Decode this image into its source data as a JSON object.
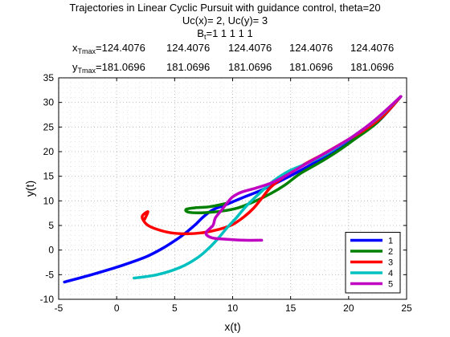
{
  "chart_data": {
    "type": "line",
    "title_lines": [
      "Trajectories in Linear Cyclic Pursuit with guidance control, theta=20",
      "Uc(x)= 2, Uc(y)= 3"
    ],
    "bt_label": "B",
    "bt_sub": "t",
    "bt_values": "=1  1  1  1  1",
    "xtmax_label": "x",
    "xtmax_sub": "Tmax",
    "xtmax_values": [
      "=124.4076",
      "124.4076",
      "124.4076",
      "124.4076",
      "124.4076"
    ],
    "ytmax_label": "y",
    "ytmax_sub": "Tmax",
    "ytmax_values": [
      "=181.0696",
      "181.0696",
      "181.0696",
      "181.0696",
      "181.0696"
    ],
    "xlabel": "x(t)",
    "ylabel": "y(t)",
    "xlim": [
      -5,
      25
    ],
    "ylim": [
      -10,
      35
    ],
    "xticks": [
      -5,
      0,
      5,
      10,
      15,
      20,
      25
    ],
    "yticks": [
      -10,
      -5,
      0,
      5,
      10,
      15,
      20,
      25,
      30,
      35
    ],
    "grid": true,
    "legend_position": "bottom-right",
    "series": [
      {
        "name": "1",
        "color": "#0000ff",
        "points": [
          [
            -4.5,
            -6.5
          ],
          [
            -2,
            -4.9
          ],
          [
            0.5,
            -3.1
          ],
          [
            2.5,
            -1.4
          ],
          [
            4,
            0.4
          ],
          [
            5.2,
            2.2
          ],
          [
            6,
            3.6
          ],
          [
            6.8,
            5.2
          ],
          [
            7.5,
            6.8
          ],
          [
            8.3,
            8.2
          ],
          [
            9.5,
            9.3
          ],
          [
            10.8,
            10.6
          ],
          [
            12.5,
            12.2
          ],
          [
            14.5,
            14.5
          ],
          [
            16.5,
            17
          ],
          [
            18.5,
            19.8
          ],
          [
            20.5,
            22.8
          ],
          [
            22.5,
            26
          ],
          [
            24.5,
            31.2
          ]
        ]
      },
      {
        "name": "2",
        "color": "#008000",
        "points": [
          [
            9.5,
            9.5
          ],
          [
            8,
            8.8
          ],
          [
            6.8,
            8.6
          ],
          [
            6,
            8.3
          ],
          [
            6.2,
            7.7
          ],
          [
            7.5,
            7.6
          ],
          [
            9,
            7.9
          ],
          [
            10.5,
            8.6
          ],
          [
            12,
            10
          ],
          [
            13.3,
            11.5
          ],
          [
            14.5,
            13.2
          ],
          [
            15.8,
            15.5
          ],
          [
            17.5,
            17.8
          ],
          [
            19,
            20
          ],
          [
            20.5,
            22.5
          ],
          [
            22.5,
            26
          ],
          [
            24.5,
            31.2
          ]
        ]
      },
      {
        "name": "3",
        "color": "#ff0000",
        "points": [
          [
            2.4,
            6.2
          ],
          [
            2.7,
            7.8
          ],
          [
            2.2,
            6.8
          ],
          [
            2.6,
            5.2
          ],
          [
            3.5,
            4.2
          ],
          [
            4.7,
            3.5
          ],
          [
            6,
            3.3
          ],
          [
            7.3,
            3.5
          ],
          [
            8.8,
            4.2
          ],
          [
            10,
            5.2
          ],
          [
            11,
            6.8
          ],
          [
            11.8,
            8.5
          ],
          [
            12.5,
            10.5
          ],
          [
            13.3,
            12.8
          ],
          [
            14.5,
            15
          ],
          [
            16,
            17.2
          ],
          [
            17.8,
            19.5
          ],
          [
            19.5,
            21.8
          ],
          [
            21.3,
            24.3
          ],
          [
            23,
            27.3
          ],
          [
            24.5,
            31.2
          ]
        ]
      },
      {
        "name": "4",
        "color": "#00c0c0",
        "points": [
          [
            1.5,
            -5.7
          ],
          [
            3.5,
            -5
          ],
          [
            5.5,
            -3.5
          ],
          [
            7,
            -1.5
          ],
          [
            8,
            0.5
          ],
          [
            8.8,
            2.5
          ],
          [
            9.5,
            4.5
          ],
          [
            10.3,
            6.5
          ],
          [
            11.2,
            9
          ],
          [
            12.3,
            11.5
          ],
          [
            13.5,
            14
          ],
          [
            14.8,
            16
          ],
          [
            16.3,
            17.5
          ],
          [
            17.8,
            19.2
          ],
          [
            19.2,
            21.2
          ],
          [
            20.8,
            23.8
          ],
          [
            22.5,
            26.8
          ],
          [
            24.5,
            31.2
          ]
        ]
      },
      {
        "name": "5",
        "color": "#c000c0",
        "points": [
          [
            12.5,
            2
          ],
          [
            11,
            2
          ],
          [
            9.5,
            2.2
          ],
          [
            8.2,
            2.5
          ],
          [
            7.7,
            3.5
          ],
          [
            8.3,
            5
          ],
          [
            8.5,
            6.5
          ],
          [
            9,
            8
          ],
          [
            9.5,
            9.5
          ],
          [
            10,
            10.8
          ],
          [
            10.8,
            11.8
          ],
          [
            12,
            12.6
          ],
          [
            13.3,
            13.6
          ],
          [
            14.5,
            15
          ],
          [
            15.8,
            16.8
          ],
          [
            17.3,
            18.8
          ],
          [
            18.8,
            20.8
          ],
          [
            20.5,
            23.3
          ],
          [
            22.3,
            26.5
          ],
          [
            24.5,
            31.2
          ]
        ]
      }
    ]
  }
}
